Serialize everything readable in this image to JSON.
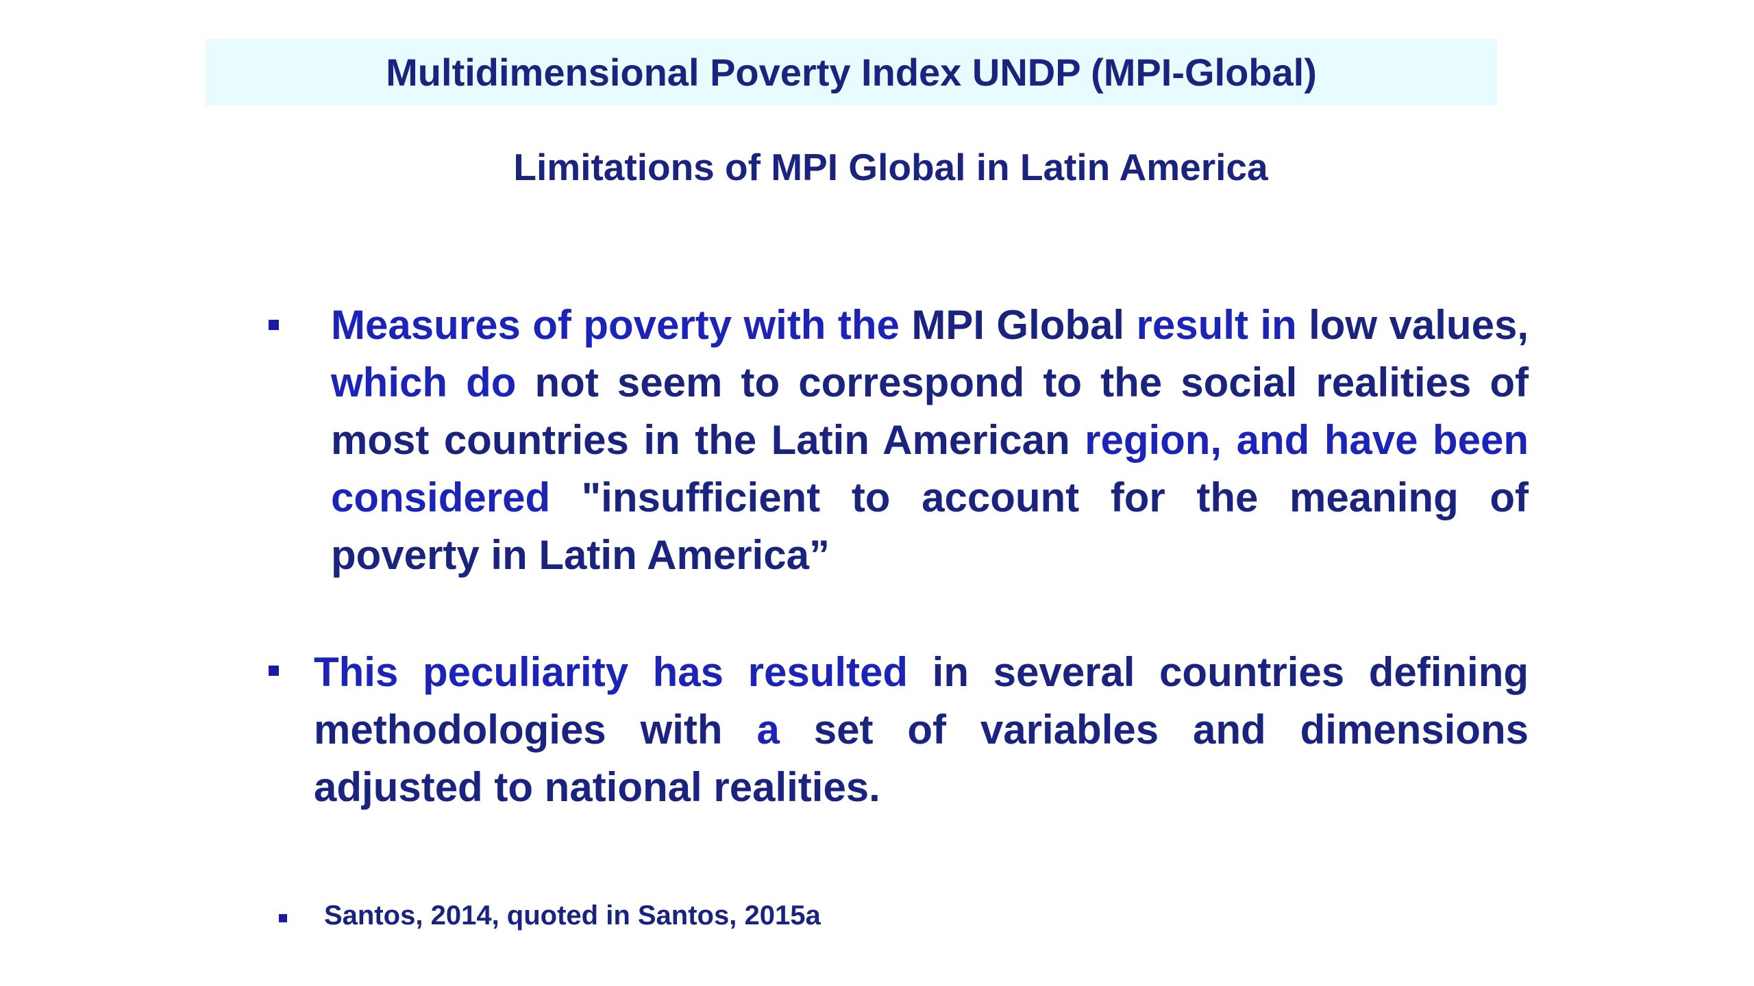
{
  "header": {
    "title": "Multidimensional Poverty Index UNDP (MPI-Global)"
  },
  "subtitle": "Limitations of MPI Global in Latin America",
  "bullets": [
    {
      "text_parts": [
        {
          "text": "Measures of poverty with the ",
          "tone": "blue"
        },
        {
          "text": "MPI Global ",
          "tone": "dark"
        },
        {
          "text": "result in ",
          "tone": "blue"
        },
        {
          "text": "low values, ",
          "tone": "dark"
        },
        {
          "text": "which do ",
          "tone": "blue"
        },
        {
          "text": "not seem to correspond to the social realities of most countries in the Latin American ",
          "tone": "dark"
        },
        {
          "text": "region, and have been considered ",
          "tone": "blue"
        },
        {
          "text": "\"insufficient to account for the meaning of poverty in Latin America”",
          "tone": "dark"
        }
      ]
    },
    {
      "text_parts": [
        {
          "text": "This peculiarity has resulted ",
          "tone": "blue"
        },
        {
          "text": "in several countries defining methodologies with ",
          "tone": "dark"
        },
        {
          "text": "a ",
          "tone": "blue"
        },
        {
          "text": "set of variables and dimensions adjusted to national realities.",
          "tone": "dark"
        }
      ]
    }
  ],
  "source": "Santos, 2014, quoted in Santos, 2015a",
  "colors": {
    "band": "#e8fbff",
    "dark_text": "#1a237e",
    "blue_text": "#1c24b8"
  }
}
